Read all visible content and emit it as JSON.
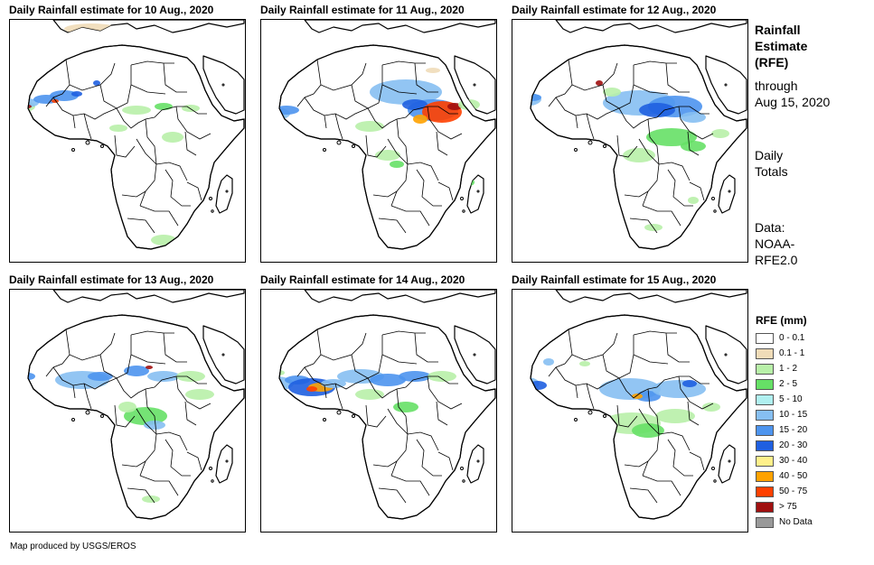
{
  "panels": [
    {
      "title": "Daily Rainfall estimate for 10 Aug., 2020"
    },
    {
      "title": "Daily Rainfall estimate for 11 Aug., 2020"
    },
    {
      "title": "Daily Rainfall estimate for 12 Aug., 2020"
    },
    {
      "title": "Daily Rainfall estimate for 13 Aug., 2020"
    },
    {
      "title": "Daily Rainfall estimate for 14 Aug., 2020"
    },
    {
      "title": "Daily Rainfall estimate for 15 Aug., 2020"
    }
  ],
  "info": {
    "heading": [
      "Rainfall",
      "Estimate",
      "(RFE)"
    ],
    "through": [
      "through",
      "Aug 15, 2020"
    ],
    "totals": [
      "Daily",
      "Totals"
    ],
    "source": [
      "Data:",
      "NOAA-",
      "RFE2.0"
    ]
  },
  "legend": {
    "title": "RFE (mm)",
    "items": [
      {
        "label": "0 - 0.1",
        "color": "#ffffff"
      },
      {
        "label": "0.1 - 1",
        "color": "#f0dcb8"
      },
      {
        "label": "1 - 2",
        "color": "#b8f0a8"
      },
      {
        "label": "2 - 5",
        "color": "#66e066"
      },
      {
        "label": "5 - 10",
        "color": "#b0f0f0"
      },
      {
        "label": "10 - 15",
        "color": "#86bff2"
      },
      {
        "label": "15 - 20",
        "color": "#4d94ee"
      },
      {
        "label": "20 - 30",
        "color": "#1f5fe0"
      },
      {
        "label": "30 - 40",
        "color": "#fff08a"
      },
      {
        "label": "40 - 50",
        "color": "#ffa200"
      },
      {
        "label": "50 - 75",
        "color": "#ff4000"
      },
      {
        "label": "> 75",
        "color": "#a01010"
      },
      {
        "label": "No Data",
        "color": "#999999"
      }
    ]
  },
  "footer": {
    "credit": "Map produced by USGS/EROS"
  }
}
